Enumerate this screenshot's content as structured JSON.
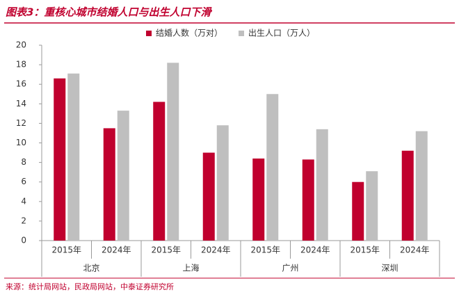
{
  "chart_data": {
    "type": "bar",
    "title": "图表3：重核心城市结婚人口与出生人口下滑",
    "categories": [
      "2015年",
      "2024年",
      "2015年",
      "2024年",
      "2015年",
      "2024年",
      "2015年",
      "2024年"
    ],
    "groups": [
      "北京",
      "上海",
      "广州",
      "深圳"
    ],
    "series": [
      {
        "name": "结婚人数（万对）",
        "color": "#c0002e",
        "values": [
          16.6,
          11.5,
          14.2,
          9.0,
          8.4,
          8.3,
          6.0,
          9.2
        ]
      },
      {
        "name": "出生人口（万人）",
        "color": "#bfbfbf",
        "values": [
          17.1,
          13.3,
          18.2,
          11.8,
          15.0,
          11.4,
          7.1,
          11.2
        ]
      }
    ],
    "ylim": [
      0,
      20
    ],
    "yticks": [
      0,
      2,
      4,
      6,
      8,
      10,
      12,
      14,
      16,
      18,
      20
    ],
    "source": "来源：统计局网站，民政局网站，中泰证券研究所"
  }
}
